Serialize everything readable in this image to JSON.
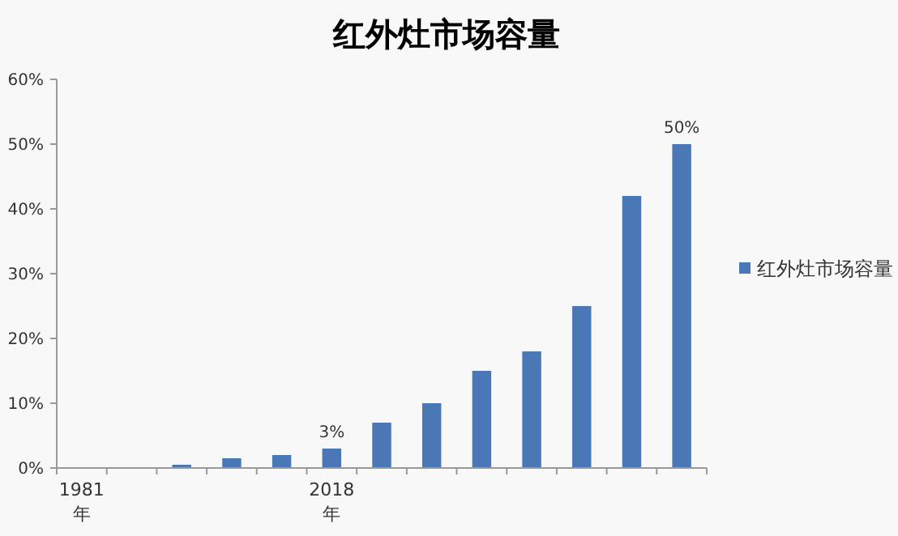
{
  "chart_data": {
    "type": "bar",
    "title": "红外灶市场容量",
    "categories": [
      "1981\n年",
      null,
      null,
      null,
      null,
      "2018\n年",
      null,
      null,
      null,
      null,
      null,
      null,
      null
    ],
    "series": [
      {
        "name": "红外灶市场容量",
        "color": "#4a78b6",
        "values": [
          0,
          0,
          0.5,
          1.5,
          2,
          3,
          7,
          10,
          15,
          18,
          25,
          42,
          50
        ],
        "value_labels": [
          null,
          null,
          null,
          null,
          null,
          "3%",
          null,
          null,
          null,
          null,
          null,
          null,
          "50%"
        ]
      }
    ],
    "ylim": [
      0,
      60
    ],
    "yticks": [
      {
        "value": 0,
        "label": "0%"
      },
      {
        "value": 10,
        "label": "10%"
      },
      {
        "value": 20,
        "label": "20%"
      },
      {
        "value": 30,
        "label": "30%"
      },
      {
        "value": 40,
        "label": "40%"
      },
      {
        "value": 50,
        "label": "50%"
      },
      {
        "value": 60,
        "label": "60%"
      }
    ],
    "legend": "right",
    "grid": false
  }
}
